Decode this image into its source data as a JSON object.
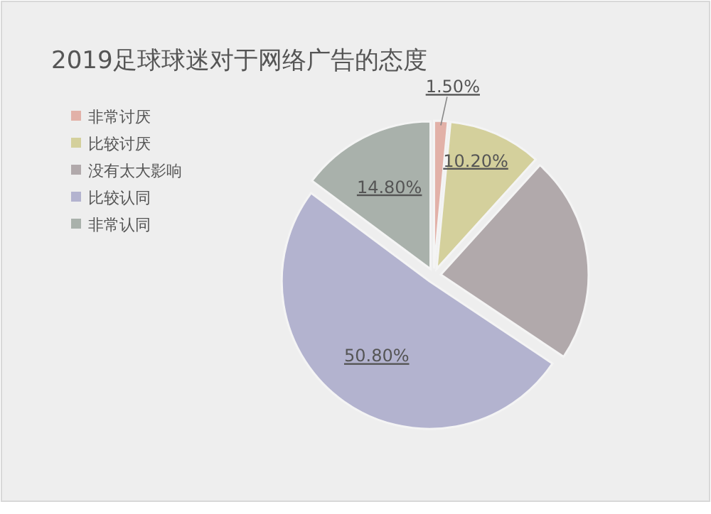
{
  "chart_data": {
    "type": "pie",
    "title": "2019足球球迷对于网络广告的态度",
    "categories": [
      "非常讨厌",
      "比较讨厌",
      "没有太大影响",
      "比较认同",
      "非常认同"
    ],
    "values": [
      1.5,
      10.2,
      22.7,
      50.8,
      14.8
    ],
    "value_labels": [
      "1.50%",
      "10.20%",
      null,
      "50.80%",
      "14.80%"
    ],
    "colors": [
      "#e2b1a8",
      "#d4d09c",
      "#b1a9ab",
      "#b3b3cf",
      "#a9b1ab"
    ],
    "legend": "left"
  }
}
